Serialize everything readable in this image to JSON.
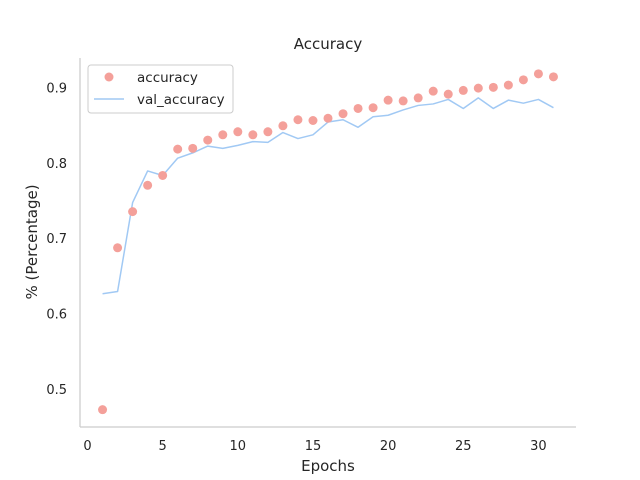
{
  "chart_data": {
    "type": "line",
    "title": "Accuracy",
    "xlabel": "Epochs",
    "ylabel": "% (Percentage)",
    "xlim": [
      -0.5,
      32.5
    ],
    "ylim": [
      0.45,
      0.94
    ],
    "xticks": [
      0,
      5,
      10,
      15,
      20,
      25,
      30
    ],
    "yticks": [
      0.5,
      0.6,
      0.7,
      0.8,
      0.9
    ],
    "grid": false,
    "legend_position": "top-left",
    "x": [
      1,
      2,
      3,
      4,
      5,
      6,
      7,
      8,
      9,
      10,
      11,
      12,
      13,
      14,
      15,
      16,
      17,
      18,
      19,
      20,
      21,
      22,
      23,
      24,
      25,
      26,
      27,
      28,
      29,
      30,
      31
    ],
    "series": [
      {
        "name": "accuracy",
        "style": "scatter",
        "color": "#f4a09a",
        "values": [
          0.473,
          0.688,
          0.736,
          0.771,
          0.784,
          0.819,
          0.82,
          0.831,
          0.838,
          0.842,
          0.838,
          0.842,
          0.85,
          0.858,
          0.857,
          0.86,
          0.866,
          0.873,
          0.874,
          0.884,
          0.883,
          0.887,
          0.896,
          0.892,
          0.897,
          0.9,
          0.901,
          0.904,
          0.911,
          0.919,
          0.915
        ]
      },
      {
        "name": "val_accuracy",
        "style": "line",
        "color": "#a1c9f4",
        "values": [
          0.627,
          0.63,
          0.748,
          0.79,
          0.784,
          0.807,
          0.814,
          0.823,
          0.82,
          0.824,
          0.829,
          0.828,
          0.841,
          0.833,
          0.838,
          0.855,
          0.858,
          0.848,
          0.862,
          0.864,
          0.871,
          0.877,
          0.879,
          0.885,
          0.873,
          0.887,
          0.873,
          0.884,
          0.88,
          0.885,
          0.874
        ]
      }
    ]
  }
}
